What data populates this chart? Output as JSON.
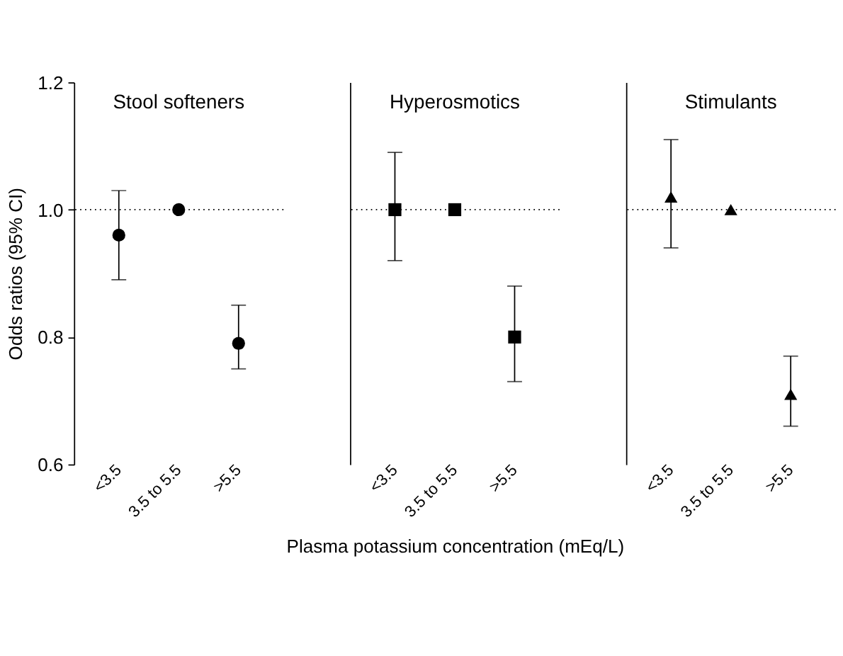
{
  "chart_data": [
    {
      "type": "scatter",
      "title": "Stool softeners",
      "ylabel": "Odds ratios (95% CI)",
      "categories": [
        "<3.5",
        "3.5 to 5.5",
        ">5.5"
      ],
      "values": [
        0.96,
        1.0,
        0.79
      ],
      "errors": [
        [
          0.89,
          1.03
        ],
        null,
        [
          0.75,
          0.85
        ]
      ],
      "color": "#000000",
      "marker": "circle",
      "ylim": [
        0.6,
        1.2
      ],
      "yticks": [
        0.6,
        0.8,
        {
          "value": 1.0,
          "label": "1.0"
        },
        1.2
      ],
      "grid": false,
      "ref_lines": [
        {
          "axis": "y",
          "value": 1.0,
          "line_style": "dotted"
        }
      ]
    },
    {
      "type": "scatter",
      "title": "Hyperosmotics",
      "xlabel": "Plasma potassium concentration (mEq/L)",
      "categories": [
        "<3.5",
        "3.5 to 5.5",
        ">5.5"
      ],
      "values": [
        1.0,
        1.0,
        0.8
      ],
      "errors": [
        [
          0.92,
          1.09
        ],
        null,
        [
          0.73,
          0.88
        ]
      ],
      "color": "#000000",
      "marker": "square",
      "ylim": [
        0.6,
        1.2
      ],
      "tick_labels": "x",
      "grid": false,
      "ref_lines": [
        {
          "axis": "y",
          "value": 1.0,
          "line_style": "dotted"
        }
      ]
    },
    {
      "type": "scatter",
      "title": "Stimulants",
      "categories": [
        "<3.5",
        "3.5 to 5.5",
        ">5.5"
      ],
      "values": [
        1.02,
        1.0,
        0.71
      ],
      "errors": [
        [
          0.94,
          1.11
        ],
        null,
        [
          0.66,
          0.77
        ]
      ],
      "color": "#000000",
      "marker": "triangle",
      "ylim": [
        0.6,
        1.2
      ],
      "tick_labels": "x",
      "grid": false,
      "ref_lines": [
        {
          "axis": "y",
          "value": 1.0,
          "line_style": "dotted"
        }
      ]
    }
  ]
}
